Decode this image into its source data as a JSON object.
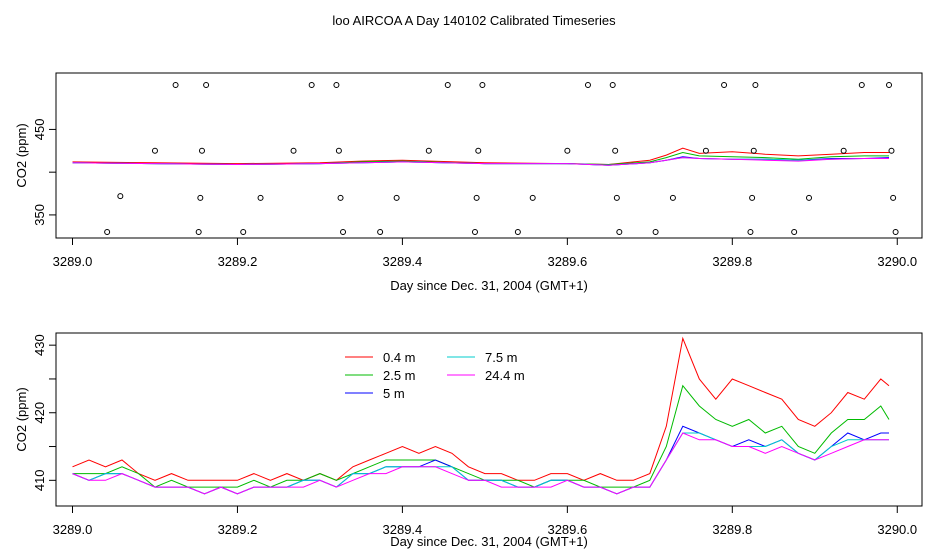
{
  "title": "loo AIRCOA A  Day 140102  Calibrated Timeseries",
  "chart_data": [
    {
      "type": "scatter",
      "xlabel": "Day since Dec. 31, 2004 (GMT+1)",
      "ylabel": "CO2 (ppm)",
      "xlim": [
        3288.98,
        3290.03
      ],
      "ylim": [
        323,
        516
      ],
      "xticks": [
        3289.0,
        3289.2,
        3289.4,
        3289.6,
        3289.8,
        3290.0
      ],
      "xtick_labels": [
        "3289.0",
        "3289.2",
        "3289.4",
        "3289.6",
        "3289.8",
        "3290.0"
      ],
      "yticks": [
        350,
        400,
        450
      ],
      "ytick_labels": [
        "350",
        "",
        "450"
      ],
      "points": [
        [
          3289.042,
          330
        ],
        [
          3289.058,
          372
        ],
        [
          3289.1,
          425
        ],
        [
          3289.125,
          502
        ],
        [
          3289.153,
          330
        ],
        [
          3289.155,
          370
        ],
        [
          3289.157,
          425
        ],
        [
          3289.162,
          502
        ],
        [
          3289.207,
          330
        ],
        [
          3289.228,
          370
        ],
        [
          3289.268,
          425
        ],
        [
          3289.29,
          502
        ],
        [
          3289.32,
          502
        ],
        [
          3289.323,
          425
        ],
        [
          3289.325,
          370
        ],
        [
          3289.328,
          330
        ],
        [
          3289.373,
          330
        ],
        [
          3289.393,
          370
        ],
        [
          3289.432,
          425
        ],
        [
          3289.455,
          502
        ],
        [
          3289.488,
          330
        ],
        [
          3289.49,
          370
        ],
        [
          3289.492,
          425
        ],
        [
          3289.497,
          502
        ],
        [
          3289.54,
          330
        ],
        [
          3289.558,
          370
        ],
        [
          3289.6,
          425
        ],
        [
          3289.625,
          502
        ],
        [
          3289.655,
          502
        ],
        [
          3289.658,
          425
        ],
        [
          3289.66,
          370
        ],
        [
          3289.663,
          330
        ],
        [
          3289.707,
          330
        ],
        [
          3289.728,
          370
        ],
        [
          3289.768,
          425
        ],
        [
          3289.79,
          502
        ],
        [
          3289.822,
          330
        ],
        [
          3289.824,
          370
        ],
        [
          3289.826,
          425
        ],
        [
          3289.828,
          502
        ],
        [
          3289.875,
          330
        ],
        [
          3289.893,
          370
        ],
        [
          3289.935,
          425
        ],
        [
          3289.957,
          502
        ],
        [
          3289.99,
          502
        ],
        [
          3289.993,
          425
        ],
        [
          3289.995,
          370
        ],
        [
          3289.998,
          330
        ]
      ],
      "series": [
        {
          "name": "0.4 m",
          "color": "#ff0000",
          "x": [
            3289.0,
            3289.1,
            3289.2,
            3289.3,
            3289.35,
            3289.4,
            3289.5,
            3289.6,
            3289.65,
            3289.7,
            3289.72,
            3289.74,
            3289.76,
            3289.8,
            3289.84,
            3289.88,
            3289.92,
            3289.96,
            3289.99
          ],
          "y": [
            412,
            411,
            410,
            411,
            413,
            414,
            411,
            410,
            409,
            414,
            420,
            428,
            422,
            424,
            421,
            419,
            421,
            423,
            423
          ]
        },
        {
          "name": "2.5 m",
          "color": "#00bb00",
          "x": [
            3289.0,
            3289.1,
            3289.2,
            3289.3,
            3289.35,
            3289.4,
            3289.5,
            3289.6,
            3289.65,
            3289.7,
            3289.72,
            3289.74,
            3289.76,
            3289.8,
            3289.84,
            3289.88,
            3289.92,
            3289.96,
            3289.99
          ],
          "y": [
            411,
            410,
            409,
            410,
            412,
            413,
            410,
            410,
            409,
            412,
            417,
            423,
            419,
            418,
            417,
            415,
            418,
            419,
            419
          ]
        },
        {
          "name": "5 m",
          "color": "#0000ff",
          "x": [
            3289.0,
            3289.1,
            3289.2,
            3289.3,
            3289.35,
            3289.4,
            3289.5,
            3289.6,
            3289.65,
            3289.7,
            3289.72,
            3289.74,
            3289.76,
            3289.8,
            3289.84,
            3289.88,
            3289.92,
            3289.96,
            3289.99
          ],
          "y": [
            411,
            410,
            409,
            410,
            411,
            412,
            410,
            410,
            408,
            411,
            414,
            418,
            416,
            415,
            415,
            414,
            416,
            416,
            417
          ]
        },
        {
          "name": "7.5 m",
          "color": "#00cccc",
          "x": [
            3289.0,
            3289.1,
            3289.2,
            3289.3,
            3289.35,
            3289.4,
            3289.5,
            3289.6,
            3289.65,
            3289.7,
            3289.72,
            3289.74,
            3289.76,
            3289.8,
            3289.84,
            3289.88,
            3289.92,
            3289.96,
            3289.99
          ],
          "y": [
            411,
            410,
            409,
            410,
            411,
            412,
            410,
            410,
            408,
            411,
            414,
            417,
            416,
            415,
            415,
            414,
            415,
            416,
            416
          ]
        },
        {
          "name": "24.4 m",
          "color": "#ff00ff",
          "x": [
            3289.0,
            3289.1,
            3289.2,
            3289.3,
            3289.35,
            3289.4,
            3289.5,
            3289.6,
            3289.65,
            3289.7,
            3289.72,
            3289.74,
            3289.76,
            3289.8,
            3289.84,
            3289.88,
            3289.92,
            3289.96,
            3289.99
          ],
          "y": [
            411,
            410,
            409,
            410,
            411,
            412,
            410,
            410,
            408,
            411,
            414,
            417,
            416,
            415,
            414,
            413,
            415,
            416,
            416
          ]
        }
      ]
    },
    {
      "type": "line",
      "xlabel": "Day since Dec. 31, 2004 (GMT+1)",
      "ylabel": "CO2 (ppm)",
      "xlim": [
        3288.98,
        3290.03
      ],
      "ylim": [
        406.2,
        431.8
      ],
      "xticks": [
        3289.0,
        3289.2,
        3289.4,
        3289.6,
        3289.8,
        3290.0
      ],
      "xtick_labels": [
        "3289.0",
        "3289.2",
        "3289.4",
        "3289.6",
        "3289.8",
        "3290.0"
      ],
      "yticks": [
        410,
        415,
        420,
        425,
        430
      ],
      "ytick_labels": [
        "410",
        "",
        "420",
        "",
        "430"
      ],
      "legend": "top-center",
      "series": [
        {
          "name": "0.4 m",
          "color": "#ff0000",
          "x": [
            3289.0,
            3289.02,
            3289.04,
            3289.06,
            3289.08,
            3289.1,
            3289.12,
            3289.14,
            3289.16,
            3289.18,
            3289.2,
            3289.22,
            3289.24,
            3289.26,
            3289.28,
            3289.3,
            3289.32,
            3289.34,
            3289.36,
            3289.38,
            3289.4,
            3289.42,
            3289.44,
            3289.46,
            3289.48,
            3289.5,
            3289.52,
            3289.54,
            3289.56,
            3289.58,
            3289.6,
            3289.62,
            3289.64,
            3289.66,
            3289.68,
            3289.7,
            3289.72,
            3289.74,
            3289.76,
            3289.78,
            3289.8,
            3289.82,
            3289.84,
            3289.86,
            3289.88,
            3289.9,
            3289.92,
            3289.94,
            3289.96,
            3289.98,
            3289.99
          ],
          "y": [
            412,
            413,
            412,
            413,
            411,
            410,
            411,
            410,
            410,
            410,
            410,
            411,
            410,
            411,
            410,
            411,
            410,
            412,
            413,
            414,
            415,
            414,
            415,
            414,
            412,
            411,
            411,
            410,
            410,
            411,
            411,
            410,
            411,
            410,
            410,
            411,
            418,
            431,
            425,
            422,
            425,
            424,
            423,
            422,
            419,
            418,
            420,
            423,
            422,
            425,
            424
          ]
        },
        {
          "name": "2.5 m",
          "color": "#00bb00",
          "x": [
            3289.0,
            3289.02,
            3289.04,
            3289.06,
            3289.08,
            3289.1,
            3289.12,
            3289.14,
            3289.16,
            3289.18,
            3289.2,
            3289.22,
            3289.24,
            3289.26,
            3289.28,
            3289.3,
            3289.32,
            3289.34,
            3289.36,
            3289.38,
            3289.4,
            3289.42,
            3289.44,
            3289.46,
            3289.48,
            3289.5,
            3289.52,
            3289.54,
            3289.56,
            3289.58,
            3289.6,
            3289.62,
            3289.64,
            3289.66,
            3289.68,
            3289.7,
            3289.72,
            3289.74,
            3289.76,
            3289.78,
            3289.8,
            3289.82,
            3289.84,
            3289.86,
            3289.88,
            3289.9,
            3289.92,
            3289.94,
            3289.96,
            3289.98,
            3289.99
          ],
          "y": [
            411,
            411,
            411,
            412,
            411,
            409,
            410,
            409,
            409,
            409,
            409,
            410,
            409,
            410,
            410,
            411,
            410,
            411,
            412,
            413,
            413,
            413,
            413,
            412,
            411,
            410,
            410,
            410,
            409,
            410,
            410,
            410,
            409,
            409,
            409,
            410,
            415,
            424,
            421,
            419,
            418,
            419,
            417,
            418,
            415,
            414,
            417,
            419,
            419,
            421,
            419
          ]
        },
        {
          "name": "5 m",
          "color": "#0000ff",
          "x": [
            3289.0,
            3289.02,
            3289.04,
            3289.06,
            3289.08,
            3289.1,
            3289.12,
            3289.14,
            3289.16,
            3289.18,
            3289.2,
            3289.22,
            3289.24,
            3289.26,
            3289.28,
            3289.3,
            3289.32,
            3289.34,
            3289.36,
            3289.38,
            3289.4,
            3289.42,
            3289.44,
            3289.46,
            3289.48,
            3289.5,
            3289.52,
            3289.54,
            3289.56,
            3289.58,
            3289.6,
            3289.62,
            3289.64,
            3289.66,
            3289.68,
            3289.7,
            3289.72,
            3289.74,
            3289.76,
            3289.78,
            3289.8,
            3289.82,
            3289.84,
            3289.86,
            3289.88,
            3289.9,
            3289.92,
            3289.94,
            3289.96,
            3289.98,
            3289.99
          ],
          "y": [
            411,
            410,
            411,
            411,
            410,
            409,
            409,
            409,
            408,
            409,
            408,
            409,
            409,
            409,
            410,
            410,
            409,
            411,
            411,
            412,
            412,
            412,
            413,
            412,
            410,
            410,
            410,
            409,
            409,
            410,
            410,
            409,
            409,
            408,
            409,
            409,
            413,
            418,
            417,
            416,
            415,
            416,
            415,
            416,
            414,
            413,
            415,
            417,
            416,
            417,
            417
          ]
        },
        {
          "name": "7.5 m",
          "color": "#00cccc",
          "x": [
            3289.0,
            3289.02,
            3289.04,
            3289.06,
            3289.08,
            3289.1,
            3289.12,
            3289.14,
            3289.16,
            3289.18,
            3289.2,
            3289.22,
            3289.24,
            3289.26,
            3289.28,
            3289.3,
            3289.32,
            3289.34,
            3289.36,
            3289.38,
            3289.4,
            3289.42,
            3289.44,
            3289.46,
            3289.48,
            3289.5,
            3289.52,
            3289.54,
            3289.56,
            3289.58,
            3289.6,
            3289.62,
            3289.64,
            3289.66,
            3289.68,
            3289.7,
            3289.72,
            3289.74,
            3289.76,
            3289.78,
            3289.8,
            3289.82,
            3289.84,
            3289.86,
            3289.88,
            3289.9,
            3289.92,
            3289.94,
            3289.96,
            3289.98,
            3289.99
          ],
          "y": [
            411,
            410,
            411,
            411,
            410,
            409,
            409,
            409,
            408,
            409,
            408,
            409,
            409,
            409,
            410,
            410,
            409,
            411,
            411,
            412,
            412,
            412,
            412,
            412,
            410,
            410,
            410,
            409,
            409,
            410,
            410,
            409,
            409,
            408,
            409,
            409,
            413,
            417,
            417,
            416,
            415,
            415,
            415,
            416,
            414,
            413,
            415,
            416,
            416,
            416,
            416
          ]
        },
        {
          "name": "24.4 m",
          "color": "#ff00ff",
          "x": [
            3289.0,
            3289.02,
            3289.04,
            3289.06,
            3289.08,
            3289.1,
            3289.12,
            3289.14,
            3289.16,
            3289.18,
            3289.2,
            3289.22,
            3289.24,
            3289.26,
            3289.28,
            3289.3,
            3289.32,
            3289.34,
            3289.36,
            3289.38,
            3289.4,
            3289.42,
            3289.44,
            3289.46,
            3289.48,
            3289.5,
            3289.52,
            3289.54,
            3289.56,
            3289.58,
            3289.6,
            3289.62,
            3289.64,
            3289.66,
            3289.68,
            3289.7,
            3289.72,
            3289.74,
            3289.76,
            3289.78,
            3289.8,
            3289.82,
            3289.84,
            3289.86,
            3289.88,
            3289.9,
            3289.92,
            3289.94,
            3289.96,
            3289.98,
            3289.99
          ],
          "y": [
            411,
            410,
            410,
            411,
            410,
            409,
            409,
            409,
            408,
            409,
            408,
            409,
            409,
            409,
            409,
            410,
            409,
            410,
            411,
            411,
            412,
            412,
            412,
            411,
            410,
            410,
            409,
            409,
            409,
            409,
            410,
            409,
            409,
            408,
            409,
            409,
            413,
            417,
            416,
            416,
            415,
            415,
            414,
            415,
            414,
            413,
            414,
            415,
            416,
            416,
            416
          ]
        }
      ]
    }
  ]
}
